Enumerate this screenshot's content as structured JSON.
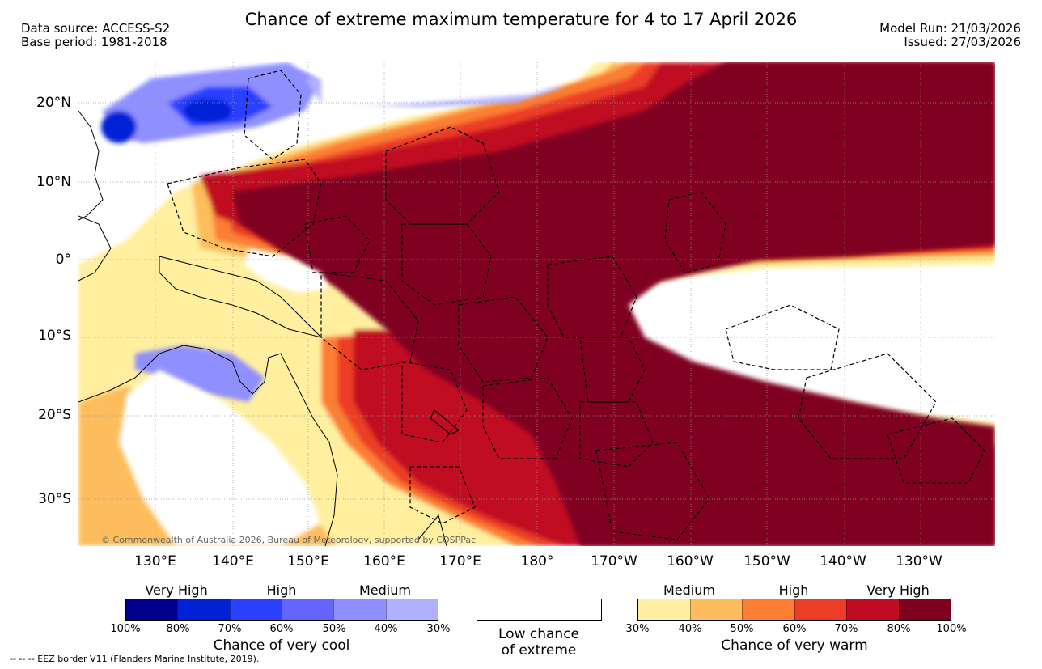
{
  "header": {
    "title": "Chance of extreme maximum temperature for 4 to 17 April 2026",
    "data_source": "Data source: ACCESS-S2",
    "base_period": "Base period: 1981-2018",
    "model_run": "Model Run: 21/03/2026",
    "issued": "Issued: 27/03/2026"
  },
  "map": {
    "lat_labels": [
      "20°N",
      "10°N",
      "0°",
      "10°S",
      "20°S",
      "30°S"
    ],
    "lon_labels": [
      "130°E",
      "140°E",
      "150°E",
      "160°E",
      "170°E",
      "180°",
      "170°W",
      "160°W",
      "150°W",
      "140°W",
      "130°W"
    ],
    "copyright": "© Commonwealth of Australia 2026, Bureau of Meteorology, supported by COSPPac",
    "colors": {
      "warm": [
        "#ffef9f",
        "#fdbd5c",
        "#fc7e32",
        "#ec3e26",
        "#c00b22",
        "#800020"
      ],
      "cool": [
        "#00008f",
        "#0022d6",
        "#2b41ff",
        "#6464ff",
        "#8f8fff",
        "#b0b0ff"
      ]
    }
  },
  "legend": {
    "cool": {
      "levels": [
        "Very High",
        "High",
        "Medium"
      ],
      "ticks": [
        "100%",
        "80%",
        "70%",
        "60%",
        "50%",
        "40%",
        "30%"
      ],
      "caption": "Chance of very cool"
    },
    "low": {
      "line1": "Low chance",
      "line2": "of extreme"
    },
    "warm": {
      "levels": [
        "Medium",
        "High",
        "Very High"
      ],
      "ticks": [
        "30%",
        "40%",
        "50%",
        "60%",
        "70%",
        "80%",
        "100%"
      ],
      "caption": "Chance of very warm"
    }
  },
  "footer": {
    "eez": "-- -- -- EEZ border V11 (Flanders Marine Institute, 2019)."
  }
}
